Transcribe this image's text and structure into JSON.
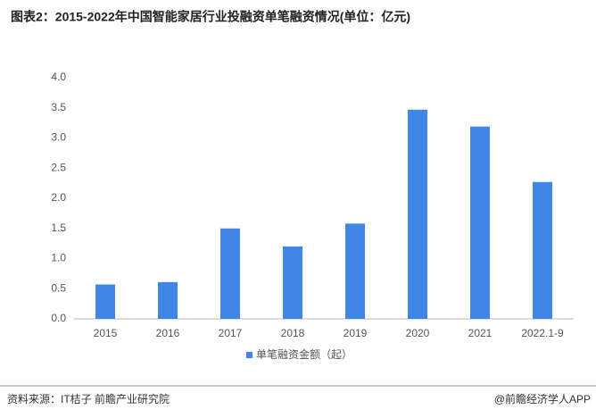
{
  "chart_data": {
    "type": "bar",
    "title": "图表2：2015-2022年中国智能家居行业投融资单笔融资情况(单位：亿元)",
    "categories": [
      "2015",
      "2016",
      "2017",
      "2018",
      "2019",
      "2020",
      "2021",
      "2022.1-9"
    ],
    "series": [
      {
        "name": "单笔融资金额（起）",
        "color": "#3f86e6",
        "values": [
          0.57,
          0.61,
          1.5,
          1.2,
          1.58,
          3.47,
          3.19,
          2.27
        ]
      }
    ],
    "ylim": [
      0,
      4
    ],
    "yticks": [
      {
        "value": 0,
        "label": "0.0"
      },
      0.5,
      {
        "value": 1,
        "label": "1.0"
      },
      1.5,
      {
        "value": 2,
        "label": "2.0"
      },
      2.5,
      {
        "value": 3,
        "label": "3.0"
      },
      3.5,
      {
        "value": 4,
        "label": "4.0"
      }
    ],
    "grid": false,
    "legend": "bottom",
    "source": "资料来源：IT桔子 前瞻产业研究院",
    "credit": "@前瞻经济学人APP"
  }
}
